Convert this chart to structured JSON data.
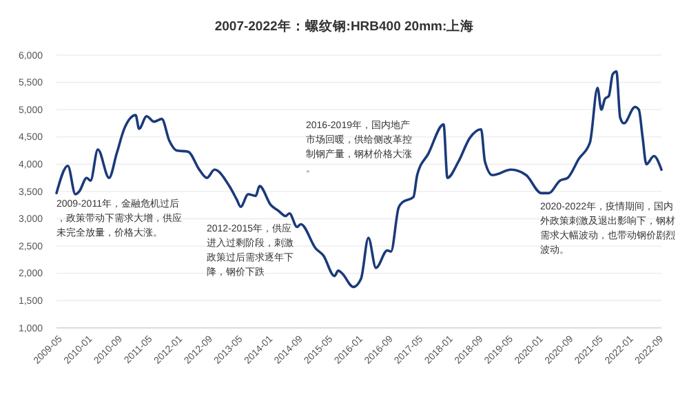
{
  "chart_data": {
    "type": "line",
    "title": "2007-2022年：螺纹钢:HRB400 20mm:上海",
    "x": [
      "2009-05",
      "2009-08",
      "2009-10",
      "2009-11",
      "2010-01",
      "2010-02",
      "2010-04",
      "2010-07",
      "2010-09",
      "2010-11",
      "2011-02",
      "2011-03",
      "2011-05",
      "2011-07",
      "2011-09",
      "2011-11",
      "2012-01",
      "2012-04",
      "2012-07",
      "2012-09",
      "2012-11",
      "2013-03",
      "2013-05",
      "2013-06",
      "2013-08",
      "2013-10",
      "2013-11",
      "2014-02",
      "2014-04",
      "2014-06",
      "2014-07",
      "2014-09",
      "2014-10",
      "2015-02",
      "2015-04",
      "2015-07",
      "2015-08",
      "2015-09",
      "2015-12",
      "2016-02",
      "2016-04",
      "2016-06",
      "2016-09",
      "2016-10",
      "2016-12",
      "2017-01",
      "2017-04",
      "2017-05",
      "2017-08",
      "2017-12",
      "2018-01",
      "2018-04",
      "2018-07",
      "2018-10",
      "2018-11",
      "2019-01",
      "2019-06",
      "2019-10",
      "2020-02",
      "2020-04",
      "2020-07",
      "2020-09",
      "2020-12",
      "2021-03",
      "2021-05",
      "2021-06",
      "2021-07",
      "2021-08",
      "2021-09",
      "2021-10",
      "2021-11",
      "2021-12",
      "2022-03",
      "2022-04",
      "2022-05",
      "2022-06",
      "2022-08",
      "2022-10"
    ],
    "series": [
      {
        "color": "#1b3a7a",
        "values": [
          3470,
          3970,
          3450,
          3500,
          3750,
          3700,
          4270,
          3750,
          4200,
          4650,
          4900,
          4650,
          4880,
          4780,
          4830,
          4430,
          4250,
          4230,
          3900,
          3750,
          3900,
          3600,
          3350,
          3220,
          3450,
          3420,
          3600,
          3250,
          3150,
          3050,
          3100,
          2850,
          2900,
          2450,
          2330,
          1950,
          2050,
          2000,
          1750,
          1900,
          2650,
          2100,
          2420,
          2400,
          3200,
          3300,
          3400,
          3800,
          4200,
          4730,
          3750,
          4050,
          4480,
          4640,
          4050,
          3800,
          3900,
          3800,
          3470,
          3470,
          3700,
          3750,
          4100,
          4400,
          5400,
          5000,
          5200,
          5250,
          5650,
          5700,
          4850,
          4750,
          5050,
          5000,
          4500,
          4000,
          4150,
          3900
        ]
      }
    ],
    "xlim": [
      "2009-05",
      "2022-10"
    ],
    "xticks": [
      "2009-05",
      "2010-01",
      "2010-09",
      "2011-05",
      "2012-01",
      "2012-09",
      "2013-05",
      "2014-01",
      "2014-09",
      "2015-05",
      "2016-01",
      "2016-09",
      "2017-05",
      "2018-01",
      "2018-09",
      "2019-05",
      "2020-01",
      "2020-09",
      "2021-05",
      "2022-01",
      "2022-09"
    ],
    "ylim": [
      1000,
      6000
    ],
    "yticks": [
      {
        "value": 1000,
        "label": "1,000"
      },
      {
        "value": 1500,
        "label": "1,500"
      },
      {
        "value": 2000,
        "label": "2,000"
      },
      {
        "value": 2500,
        "label": "2,500"
      },
      {
        "value": 3000,
        "label": "3,000"
      },
      {
        "value": 3500,
        "label": "3,500"
      },
      {
        "value": 4000,
        "label": "4,000"
      },
      {
        "value": 4500,
        "label": "4,500"
      },
      {
        "value": 5000,
        "label": "5,000"
      },
      {
        "value": 5500,
        "label": "5,500"
      },
      {
        "value": 6000,
        "label": "6,000"
      }
    ],
    "grid": "y",
    "annotations": [
      "2009-2011年，金融危机过后，政策带动下需求大增，供应未完全放量，价格大涨。",
      "2012-2015年，供应进入过剩阶段，刺激政策过后需求逐年下降，钢价下跌",
      "2016-2019年，国内地产市场回暖，供给侧改革控制钢产量，钢材价格大涨。",
      "2020-2022年，疫情期间，国内外政策刺激及退出影响下，钢材需求大幅波动，也带动钢价剧烈波动。"
    ]
  }
}
